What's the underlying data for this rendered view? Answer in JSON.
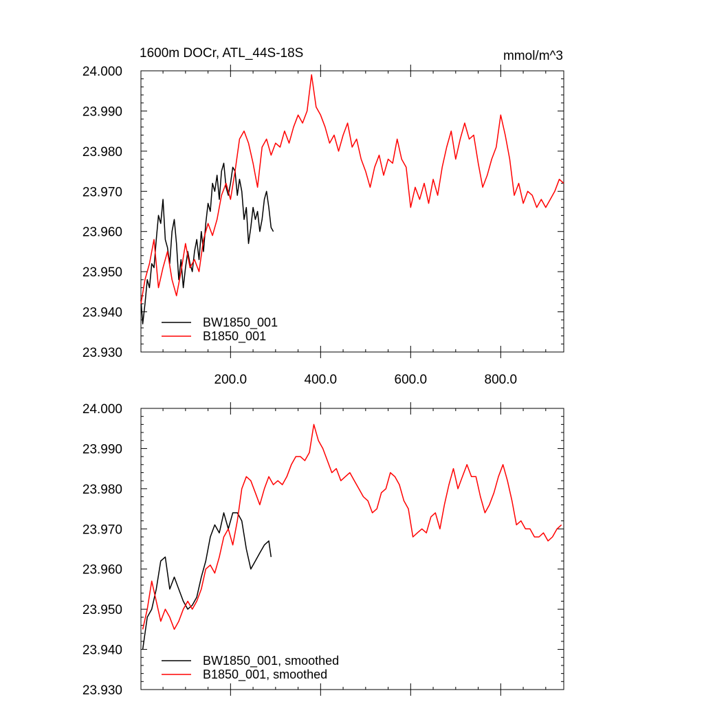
{
  "header": {
    "title": "1600m DOCr, ATL_44S-18S",
    "units": "mmol/m^3"
  },
  "colors": {
    "bw": "#000000",
    "b": "#ff0000"
  },
  "chart_data": [
    {
      "type": "line",
      "panel": "top",
      "title": "1600m DOCr, ATL_44S-18S",
      "ylabel": "mmol/m^3",
      "xlim": [
        1,
        940
      ],
      "ylim": [
        23.93,
        24.0
      ],
      "y_ticks": [
        "24.000",
        "23.990",
        "23.980",
        "23.970",
        "23.960",
        "23.950",
        "23.940",
        "23.930"
      ],
      "x_ticks": [
        "200.0",
        "400.0",
        "600.0",
        "800.0"
      ],
      "legend": [
        "BW1850_001",
        "B1850_001"
      ],
      "series": [
        {
          "name": "BW1850_001",
          "color": "#000000",
          "x": [
            1,
            5,
            10,
            15,
            20,
            25,
            30,
            35,
            40,
            45,
            50,
            55,
            60,
            65,
            70,
            75,
            80,
            85,
            90,
            95,
            100,
            105,
            110,
            115,
            120,
            125,
            130,
            135,
            140,
            145,
            150,
            155,
            160,
            165,
            170,
            175,
            180,
            185,
            190,
            195,
            200,
            205,
            210,
            215,
            220,
            225,
            230,
            235,
            240,
            245,
            250,
            255,
            260,
            265,
            270,
            275,
            280,
            285,
            290,
            295
          ],
          "y": [
            23.943,
            23.937,
            23.942,
            23.948,
            23.946,
            23.952,
            23.951,
            23.958,
            23.964,
            23.962,
            23.968,
            23.958,
            23.956,
            23.952,
            23.96,
            23.963,
            23.957,
            23.948,
            23.953,
            23.946,
            23.951,
            23.955,
            23.952,
            23.95,
            23.955,
            23.958,
            23.953,
            23.96,
            23.955,
            23.962,
            23.967,
            23.965,
            23.972,
            23.97,
            23.974,
            23.968,
            23.975,
            23.977,
            23.971,
            23.969,
            23.972,
            23.976,
            23.975,
            23.969,
            23.973,
            23.97,
            23.963,
            23.966,
            23.957,
            23.961,
            23.966,
            23.963,
            23.965,
            23.96,
            23.963,
            23.968,
            23.97,
            23.966,
            23.961,
            23.96
          ]
        },
        {
          "name": "B1850_001",
          "color": "#ff0000",
          "x": [
            1,
            10,
            20,
            30,
            40,
            50,
            60,
            70,
            80,
            90,
            100,
            110,
            120,
            130,
            140,
            150,
            160,
            170,
            180,
            190,
            200,
            210,
            220,
            230,
            240,
            250,
            260,
            270,
            280,
            290,
            300,
            310,
            320,
            330,
            340,
            350,
            360,
            370,
            380,
            390,
            400,
            410,
            420,
            430,
            440,
            450,
            460,
            470,
            480,
            490,
            500,
            510,
            520,
            530,
            540,
            550,
            560,
            570,
            580,
            590,
            600,
            610,
            620,
            630,
            640,
            650,
            660,
            670,
            680,
            690,
            700,
            710,
            720,
            730,
            740,
            750,
            760,
            770,
            780,
            790,
            800,
            810,
            820,
            830,
            840,
            850,
            860,
            870,
            880,
            890,
            900,
            910,
            920,
            930,
            940
          ],
          "y": [
            23.942,
            23.948,
            23.952,
            23.958,
            23.946,
            23.951,
            23.955,
            23.948,
            23.944,
            23.95,
            23.957,
            23.951,
            23.953,
            23.95,
            23.958,
            23.962,
            23.959,
            23.963,
            23.969,
            23.972,
            23.968,
            23.975,
            23.983,
            23.985,
            23.982,
            23.977,
            23.971,
            23.981,
            23.983,
            23.979,
            23.982,
            23.981,
            23.985,
            23.982,
            23.986,
            23.989,
            23.987,
            23.99,
            23.999,
            23.991,
            23.989,
            23.986,
            23.982,
            23.984,
            23.98,
            23.984,
            23.987,
            23.981,
            23.983,
            23.978,
            23.975,
            23.971,
            23.976,
            23.979,
            23.974,
            23.978,
            23.977,
            23.983,
            23.978,
            23.976,
            23.966,
            23.971,
            23.968,
            23.972,
            23.967,
            23.973,
            23.969,
            23.976,
            23.981,
            23.985,
            23.978,
            23.983,
            23.987,
            23.983,
            23.984,
            23.977,
            23.971,
            23.974,
            23.978,
            23.981,
            23.989,
            23.984,
            23.978,
            23.969,
            23.972,
            23.967,
            23.97,
            23.969,
            23.966,
            23.968,
            23.966,
            23.968,
            23.97,
            23.973,
            23.972
          ]
        }
      ]
    },
    {
      "type": "line",
      "panel": "bottom",
      "xlim": [
        1,
        940
      ],
      "ylim": [
        23.93,
        24.0
      ],
      "y_ticks": [
        "24.000",
        "23.990",
        "23.980",
        "23.970",
        "23.960",
        "23.950",
        "23.940",
        "23.930"
      ],
      "legend": [
        "BW1850_001, smoothed",
        "B1850_001, smoothed"
      ],
      "series": [
        {
          "name": "BW1850_001, smoothed",
          "color": "#000000",
          "x": [
            5,
            15,
            25,
            35,
            45,
            55,
            65,
            75,
            85,
            95,
            105,
            115,
            125,
            135,
            145,
            155,
            165,
            175,
            185,
            195,
            205,
            215,
            225,
            235,
            245,
            255,
            265,
            275,
            285,
            290
          ],
          "y": [
            23.94,
            23.948,
            23.95,
            23.955,
            23.962,
            23.963,
            23.955,
            23.958,
            23.955,
            23.952,
            23.95,
            23.951,
            23.953,
            23.958,
            23.962,
            23.968,
            23.971,
            23.969,
            23.974,
            23.97,
            23.974,
            23.974,
            23.972,
            23.965,
            23.96,
            23.962,
            23.964,
            23.966,
            23.967,
            23.963
          ]
        },
        {
          "name": "B1850_001, smoothed",
          "color": "#ff0000",
          "x": [
            5,
            15,
            25,
            35,
            45,
            55,
            65,
            75,
            85,
            95,
            105,
            115,
            125,
            135,
            145,
            155,
            165,
            175,
            185,
            195,
            205,
            215,
            225,
            235,
            245,
            255,
            265,
            275,
            285,
            295,
            305,
            315,
            325,
            335,
            345,
            355,
            365,
            375,
            385,
            395,
            405,
            415,
            425,
            435,
            445,
            455,
            465,
            475,
            485,
            495,
            505,
            515,
            525,
            535,
            545,
            555,
            565,
            575,
            585,
            595,
            605,
            615,
            625,
            635,
            645,
            655,
            665,
            675,
            685,
            695,
            705,
            715,
            725,
            735,
            745,
            755,
            765,
            775,
            785,
            795,
            805,
            815,
            825,
            835,
            845,
            855,
            865,
            875,
            885,
            895,
            905,
            915,
            925,
            935
          ],
          "y": [
            23.945,
            23.95,
            23.957,
            23.952,
            23.947,
            23.95,
            23.948,
            23.945,
            23.947,
            23.95,
            23.952,
            23.95,
            23.952,
            23.955,
            23.96,
            23.961,
            23.959,
            23.963,
            23.968,
            23.97,
            23.966,
            23.972,
            23.98,
            23.983,
            23.982,
            23.979,
            23.976,
            23.98,
            23.983,
            23.981,
            23.982,
            23.981,
            23.983,
            23.986,
            23.988,
            23.988,
            23.987,
            23.989,
            23.996,
            23.992,
            23.99,
            23.987,
            23.984,
            23.985,
            23.982,
            23.983,
            23.984,
            23.982,
            23.98,
            23.978,
            23.977,
            23.974,
            23.975,
            23.979,
            23.98,
            23.984,
            23.983,
            23.981,
            23.977,
            23.975,
            23.968,
            23.969,
            23.97,
            23.969,
            23.973,
            23.974,
            23.97,
            23.976,
            23.981,
            23.985,
            23.98,
            23.983,
            23.986,
            23.983,
            23.983,
            23.978,
            23.974,
            23.976,
            23.979,
            23.983,
            23.986,
            23.982,
            23.977,
            23.971,
            23.972,
            23.97,
            23.97,
            23.968,
            23.968,
            23.969,
            23.967,
            23.968,
            23.97,
            23.971
          ]
        }
      ]
    }
  ]
}
